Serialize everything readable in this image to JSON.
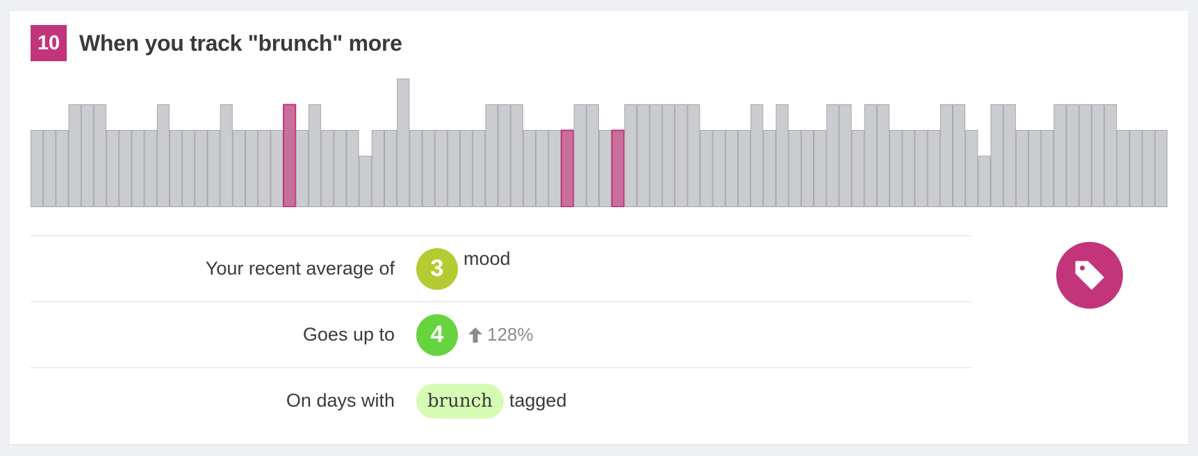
{
  "insight": {
    "rank": "10",
    "title": "When you track \"brunch\" more"
  },
  "chart_data": {
    "type": "bar",
    "description_free": true,
    "bar_count": 90,
    "levels": [
      3,
      3,
      3,
      4,
      4,
      4,
      3,
      3,
      3,
      3,
      4,
      3,
      3,
      3,
      3,
      4,
      3,
      3,
      3,
      3,
      4,
      3,
      4,
      3,
      3,
      3,
      2,
      3,
      3,
      5,
      3,
      3,
      3,
      3,
      3,
      3,
      4,
      4,
      4,
      3,
      3,
      3,
      3,
      4,
      4,
      3,
      3,
      4,
      4,
      4,
      4,
      4,
      4,
      3,
      3,
      3,
      3,
      4,
      3,
      4,
      3,
      3,
      3,
      4,
      4,
      3,
      4,
      4,
      3,
      3,
      3,
      3,
      4,
      4,
      3,
      2,
      4,
      4,
      3,
      3,
      3,
      4,
      4,
      4,
      4,
      4,
      3,
      3,
      3,
      3
    ],
    "highlighted_indices": [
      20,
      42,
      46
    ],
    "ylim": [
      0,
      5
    ],
    "colors": {
      "bar": "#cbccd0",
      "bar_stroke": "#a7a8ad",
      "highlight": "#c96f9b",
      "highlight_stroke": "#c2357a"
    }
  },
  "rows": [
    {
      "label": "Your recent average of",
      "value": "3",
      "after": "mood",
      "color": "#b5cb32"
    },
    {
      "label": "Goes up to",
      "value": "4",
      "change": "128%",
      "color": "#66d43e"
    },
    {
      "label": "On days with",
      "tag": "brunch",
      "after": "tagged"
    }
  ],
  "icons": {
    "change": "arrow-up-icon",
    "action": "tag-icon"
  },
  "colors": {
    "accent": "#c2357a",
    "tag_bg": "#d6fbb4"
  }
}
